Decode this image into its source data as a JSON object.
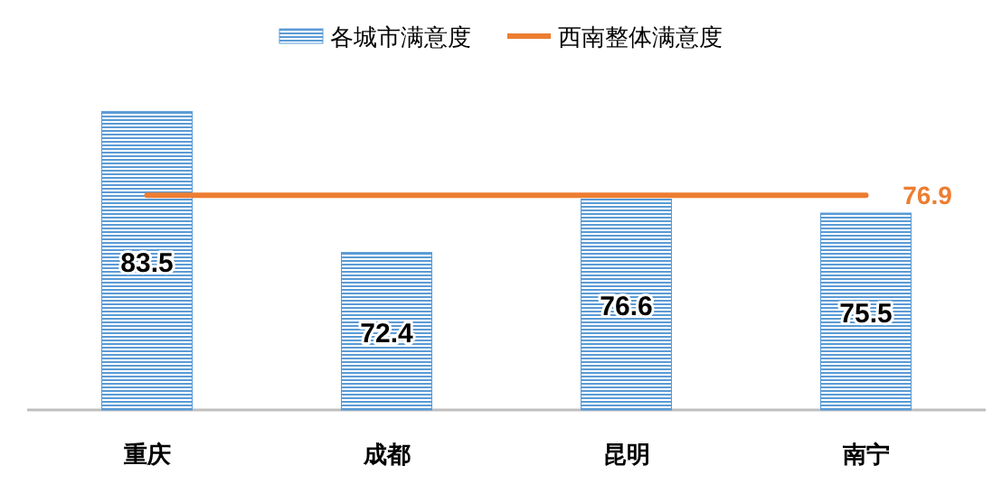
{
  "chart_data": {
    "type": "bar",
    "categories": [
      "重庆",
      "成都",
      "昆明",
      "南宁"
    ],
    "ylim": [
      60,
      90
    ],
    "tick_labels": "x",
    "legend": "top",
    "series": [
      {
        "name": "各城市满意度",
        "color": "#5b9bd5",
        "values": [
          83.5,
          72.4,
          76.6,
          75.5
        ],
        "value_labels": [
          "83.5",
          "72.4",
          "76.6",
          "75.5"
        ]
      },
      {
        "name": "西南整体满意度",
        "type": "line",
        "color": "#ed7d31",
        "values": [
          76.9,
          76.9,
          76.9,
          76.9
        ],
        "value_labels": [
          null,
          null,
          null,
          "76.9"
        ]
      }
    ]
  }
}
